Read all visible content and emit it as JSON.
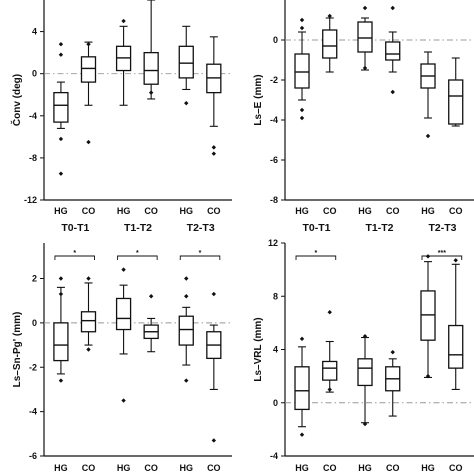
{
  "chart_data": [
    {
      "type": "box",
      "ylabel": "Čonv (deg)",
      "ylim": [
        -12,
        7
      ],
      "yticks": [
        -12,
        -8,
        -4,
        0,
        4
      ],
      "reference_line": 0,
      "groups": [
        "T0-T1",
        "T1-T2",
        "T2-T3"
      ],
      "categories": [
        "HG",
        "CO"
      ],
      "show_category_labels": false,
      "significance": [],
      "boxes": [
        {
          "group": "T0-T1",
          "category": "HG",
          "whisker_low": -5.2,
          "q1": -4.6,
          "median": -3.0,
          "q3": -1.8,
          "whisker_high": -0.8,
          "outliers": [
            2.8,
            1.8,
            -6.2,
            -9.5
          ]
        },
        {
          "group": "T0-T1",
          "category": "CO",
          "whisker_low": -3.0,
          "q1": -0.8,
          "median": 0.5,
          "q3": 1.6,
          "whisker_high": 3.0,
          "outliers": [
            2.8,
            -6.5
          ]
        },
        {
          "group": "T1-T2",
          "category": "HG",
          "whisker_low": -3.0,
          "q1": 0.3,
          "median": 1.5,
          "q3": 2.6,
          "whisker_high": 4.5,
          "outliers": [
            5.0
          ]
        },
        {
          "group": "T1-T2",
          "category": "CO",
          "whisker_low": -2.4,
          "q1": -1.0,
          "median": 0.3,
          "q3": 2.0,
          "whisker_high": 7.0,
          "outliers": [
            -1.8
          ]
        },
        {
          "group": "T2-T3",
          "category": "HG",
          "whisker_low": -1.5,
          "q1": -0.4,
          "median": 1.0,
          "q3": 2.6,
          "whisker_high": 4.5,
          "outliers": [
            -2.8
          ]
        },
        {
          "group": "T2-T3",
          "category": "CO",
          "whisker_low": -5.0,
          "q1": -1.8,
          "median": -0.4,
          "q3": 0.9,
          "whisker_high": 3.5,
          "outliers": [
            -7.0,
            -7.6
          ]
        }
      ]
    },
    {
      "type": "box",
      "ylabel": "Ls–E (mm)",
      "ylim": [
        -8,
        2
      ],
      "yticks": [
        -8,
        -6,
        -4,
        -2,
        0
      ],
      "reference_line": 0,
      "groups": [
        "T0-T1",
        "T1-T2",
        "T2-T3"
      ],
      "categories": [
        "HG",
        "CO"
      ],
      "show_category_labels": false,
      "significance": [],
      "boxes": [
        {
          "group": "T0-T1",
          "category": "HG",
          "whisker_low": -3.0,
          "q1": -2.4,
          "median": -1.6,
          "q3": -0.7,
          "whisker_high": 0.4,
          "outliers": [
            1.0,
            0.6,
            -3.5,
            -3.9
          ]
        },
        {
          "group": "T0-T1",
          "category": "CO",
          "whisker_low": -1.6,
          "q1": -0.9,
          "median": -0.3,
          "q3": 0.5,
          "whisker_high": 1.1,
          "outliers": [
            1.2
          ]
        },
        {
          "group": "T1-T2",
          "category": "HG",
          "whisker_low": -1.5,
          "q1": -0.6,
          "median": 0.1,
          "q3": 0.9,
          "whisker_high": 1.1,
          "outliers": [
            1.6,
            -1.4
          ]
        },
        {
          "group": "T1-T2",
          "category": "CO",
          "whisker_low": -1.6,
          "q1": -1.0,
          "median": -0.7,
          "q3": -0.1,
          "whisker_high": 0.4,
          "outliers": [
            1.6,
            -2.6
          ]
        },
        {
          "group": "T2-T3",
          "category": "HG",
          "whisker_low": -3.9,
          "q1": -2.4,
          "median": -1.8,
          "q3": -1.2,
          "whisker_high": -0.6,
          "outliers": [
            -4.8
          ]
        },
        {
          "group": "T2-T3",
          "category": "CO",
          "whisker_low": -4.3,
          "q1": -4.2,
          "median": -2.8,
          "q3": -2.0,
          "whisker_high": -0.9,
          "outliers": []
        }
      ]
    },
    {
      "type": "box",
      "ylabel": "Ls–Sn-Pg' (mm)",
      "ylim": [
        -6,
        3.6
      ],
      "yticks": [
        -6,
        -4,
        -2,
        0,
        2
      ],
      "reference_line": 0,
      "groups": [
        "T0-T1",
        "T1-T2",
        "T2-T3"
      ],
      "categories": [
        "HG",
        "CO"
      ],
      "show_category_labels": true,
      "significance": [
        {
          "group": "T0-T1",
          "label": "*"
        },
        {
          "group": "T1-T2",
          "label": "*"
        },
        {
          "group": "T2-T3",
          "label": "*"
        }
      ],
      "boxes": [
        {
          "group": "T0-T1",
          "category": "HG",
          "whisker_low": -2.3,
          "q1": -1.7,
          "median": -1.0,
          "q3": 0.0,
          "whisker_high": 1.6,
          "outliers": [
            2.0,
            1.3,
            -2.6
          ]
        },
        {
          "group": "T0-T1",
          "category": "CO",
          "whisker_low": -1.0,
          "q1": -0.4,
          "median": 0.1,
          "q3": 0.5,
          "whisker_high": 1.8,
          "outliers": [
            2.0,
            -1.2
          ]
        },
        {
          "group": "T1-T2",
          "category": "HG",
          "whisker_low": -1.4,
          "q1": -0.3,
          "median": 0.2,
          "q3": 1.1,
          "whisker_high": 1.7,
          "outliers": [
            2.4,
            -3.5
          ]
        },
        {
          "group": "T1-T2",
          "category": "CO",
          "whisker_low": -1.3,
          "q1": -0.7,
          "median": -0.4,
          "q3": -0.1,
          "whisker_high": 0.2,
          "outliers": [
            1.2
          ]
        },
        {
          "group": "T2-T3",
          "category": "HG",
          "whisker_low": -1.9,
          "q1": -1.0,
          "median": -0.3,
          "q3": 0.3,
          "whisker_high": 0.7,
          "outliers": [
            2.0,
            1.2,
            -2.6
          ]
        },
        {
          "group": "T2-T3",
          "category": "CO",
          "whisker_low": -3.0,
          "q1": -1.6,
          "median": -1.0,
          "q3": -0.4,
          "whisker_high": -0.1,
          "outliers": [
            1.3,
            -5.3
          ]
        }
      ]
    },
    {
      "type": "box",
      "ylabel": "Ls–VRL (mm)",
      "ylim": [
        -4,
        12
      ],
      "yticks": [
        -4,
        0,
        4,
        8,
        12
      ],
      "reference_line": 0,
      "groups": [
        "T0-T1",
        "T1-T2",
        "T2-T3"
      ],
      "categories": [
        "HG",
        "CO"
      ],
      "show_category_labels": true,
      "significance": [
        {
          "group": "T0-T1",
          "label": "*"
        },
        {
          "group": "T2-T3",
          "label": "***"
        }
      ],
      "boxes": [
        {
          "group": "T0-T1",
          "category": "HG",
          "whisker_low": -1.8,
          "q1": -0.5,
          "median": 0.9,
          "q3": 2.7,
          "whisker_high": 4.2,
          "outliers": [
            4.8,
            -2.4
          ]
        },
        {
          "group": "T0-T1",
          "category": "CO",
          "whisker_low": 0.8,
          "q1": 1.7,
          "median": 2.6,
          "q3": 3.1,
          "whisker_high": 4.6,
          "outliers": [
            6.8,
            1.0
          ]
        },
        {
          "group": "T1-T2",
          "category": "HG",
          "whisker_low": -1.5,
          "q1": 1.3,
          "median": 2.6,
          "q3": 3.3,
          "whisker_high": 4.9,
          "outliers": [
            5.0,
            -1.6
          ]
        },
        {
          "group": "T1-T2",
          "category": "CO",
          "whisker_low": -1.0,
          "q1": 0.9,
          "median": 1.8,
          "q3": 2.7,
          "whisker_high": 3.3,
          "outliers": [
            3.8
          ]
        },
        {
          "group": "T2-T3",
          "category": "HG",
          "whisker_low": 1.9,
          "q1": 4.7,
          "median": 6.6,
          "q3": 8.4,
          "whisker_high": 10.6,
          "outliers": [
            11.0,
            2.0
          ]
        },
        {
          "group": "T2-T3",
          "category": "CO",
          "whisker_low": 1.0,
          "q1": 2.6,
          "median": 3.6,
          "q3": 5.8,
          "whisker_high": 10.4,
          "outliers": [
            10.7
          ]
        }
      ]
    }
  ]
}
